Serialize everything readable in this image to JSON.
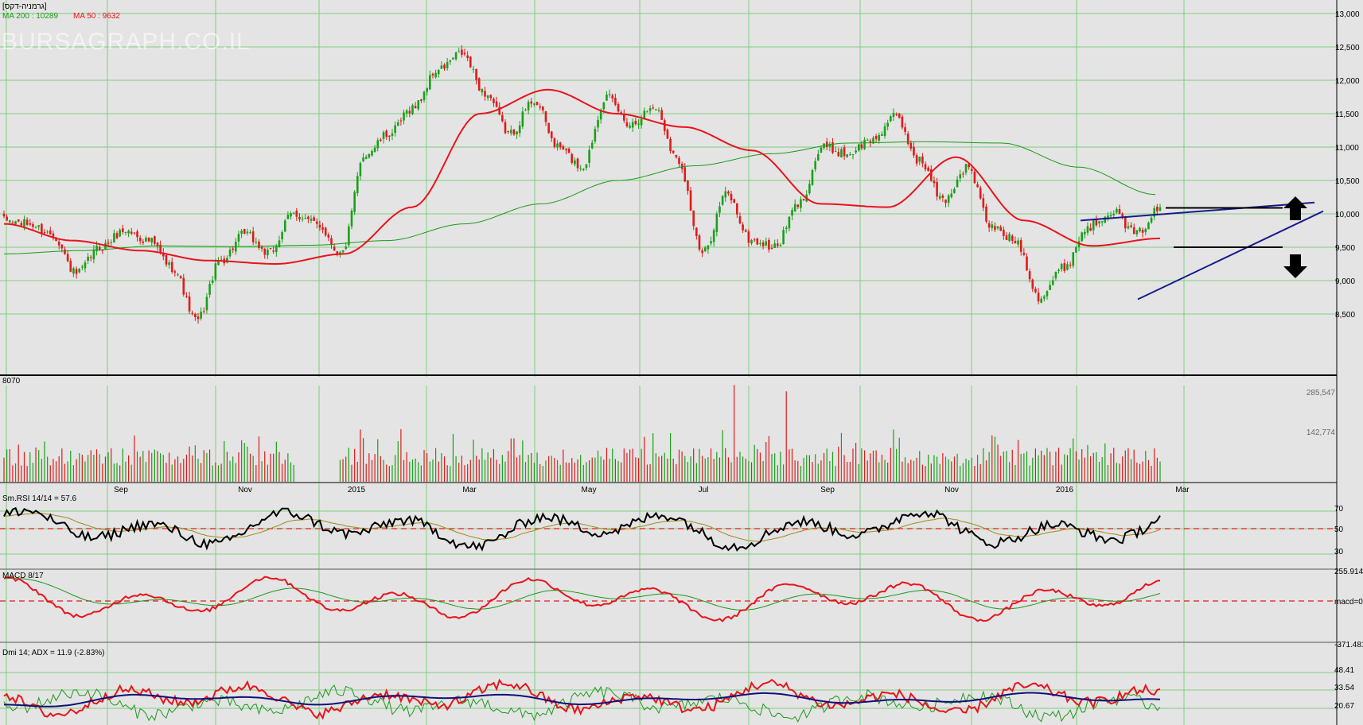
{
  "panels": {
    "price": {
      "title": "[גרמניה-דקס]",
      "ma200_label": "MA 200 : 10289",
      "ma50_label": "MA 50 : 9632",
      "watermark": "BURSAGRAPH.CO.IL",
      "y_ticks": [
        "13,000",
        "12,500",
        "12,000",
        "11,500",
        "11,000",
        "10,500",
        "10,000",
        "9,500",
        "9,000",
        "8,500"
      ]
    },
    "volume": {
      "title": "8070",
      "y_ticks": [
        "285,547",
        "142,774"
      ]
    },
    "rsi": {
      "title": "Sm.RSI 14/14 = 57.6",
      "y_ticks": [
        "70",
        "50",
        "30"
      ]
    },
    "macd": {
      "title": "MACD 8/17",
      "y_ticks": [
        "255.914",
        "macd=0",
        "-371.481"
      ]
    },
    "dmi": {
      "title": "Dmi 14; ADX = 11.9 (-2.83%)",
      "y_ticks": [
        "48.41",
        "33.54",
        "20.67"
      ]
    }
  },
  "x_axis": {
    "labels": [
      "Sep",
      "Nov",
      "2015",
      "Mar",
      "May",
      "Jul",
      "Sep",
      "Nov",
      "2016",
      "Mar"
    ]
  },
  "colors": {
    "background": "#e4e4e4",
    "grid": "#7fce7f",
    "up_candle": "#19a019",
    "down_candle": "#e01a1a",
    "ma50": "#e8141c",
    "ma200": "#1a9a1a",
    "trendline": "#1a1a8c",
    "dashed": "#e01a1a"
  },
  "chart_data": [
    {
      "type": "candlestick",
      "title": "[גרמניה-דקס]",
      "ylim": [
        8300,
        13000
      ],
      "series": [
        {
          "name": "MA 200 : 10289",
          "values": [
            9400,
            9450,
            9520,
            9510,
            9530,
            9600,
            9850,
            10150,
            10500,
            10720,
            10900,
            11060,
            11080,
            11060,
            10700,
            10290
          ]
        },
        {
          "name": "MA 50 : 9632",
          "values": [
            9850,
            9600,
            9450,
            9300,
            9250,
            9400,
            10100,
            11500,
            11860,
            11500,
            11300,
            10950,
            10150,
            10100,
            10850,
            9900,
            9520,
            9632
          ]
        }
      ],
      "price_path": [
        9900,
        9850,
        9700,
        9100,
        9500,
        9750,
        9600,
        9200,
        8400,
        9300,
        9700,
        9400,
        10000,
        9850,
        9400,
        10900,
        11200,
        11600,
        12150,
        12400,
        11800,
        11200,
        11700,
        11000,
        10700,
        11750,
        11350,
        11600,
        10800,
        9400,
        10300,
        9600,
        9500,
        10150,
        11000,
        10900,
        11100,
        11450,
        10800,
        10200,
        10700,
        9800,
        9600,
        8750,
        9200,
        9800,
        10050,
        9700,
        10080
      ],
      "trendlines": [
        {
          "from": [
            "2016-01",
            9900
          ],
          "to": [
            "2016-04",
            10170
          ]
        },
        {
          "from": [
            "2016-02",
            8720
          ],
          "to": [
            "2016-04",
            10040
          ]
        }
      ],
      "support_resistance": [
        10100,
        9500
      ]
    },
    {
      "type": "bar",
      "title": "8070",
      "ylim": [
        0,
        330000
      ],
      "ticks": [
        285547,
        142774
      ]
    },
    {
      "type": "line",
      "title": "Sm.RSI 14/14 = 57.6",
      "ylim": [
        20,
        80
      ],
      "reference_line": 50,
      "last_value": 57.6
    },
    {
      "type": "line",
      "title": "MACD 8/17",
      "ylim": [
        -371.481,
        255.914
      ],
      "reference_line": 0
    },
    {
      "type": "line",
      "title": "Dmi 14; ADX = 11.9 (-2.83%)",
      "ticks": [
        48.41,
        33.54,
        20.67
      ],
      "last_value": 11.9
    }
  ]
}
